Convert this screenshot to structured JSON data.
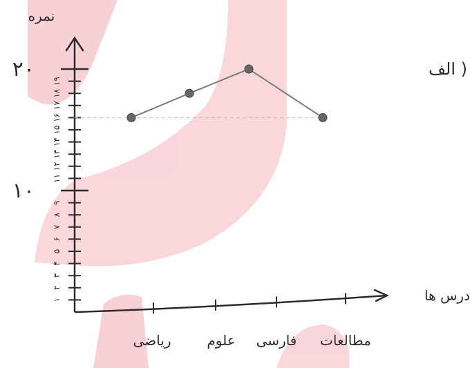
{
  "panel_label": "الف )",
  "chart_data": {
    "type": "line",
    "categories": [
      "ریاضی",
      "علوم",
      "فارسی",
      "مطالعات"
    ],
    "values": [
      16,
      18,
      20,
      16
    ],
    "ylabel": "نمره",
    "xlabel": "درس ها",
    "ylim": [
      0,
      20
    ],
    "y_tick_labels": [
      {
        "value": 10,
        "label": "۱۰"
      },
      {
        "value": 20,
        "label": "۲۰"
      }
    ],
    "y_minor_labels_lower": [
      "۱",
      "۲",
      "۳",
      "۴",
      "۵",
      "۶",
      "۷",
      "۸",
      "۹"
    ],
    "y_minor_labels_upper": [
      "۱۱",
      "۱۲",
      "۱۳",
      "۱۴",
      "۱۵",
      "۱۶",
      "۱۷",
      "۱۸",
      "۱۹"
    ],
    "reference_line_value": 16,
    "grid": false,
    "legend": "none",
    "colors": {
      "line": "#7a7a7a",
      "marker": "#666666",
      "axis": "#2b2b2b",
      "watermark": "#f4a3ad"
    }
  }
}
